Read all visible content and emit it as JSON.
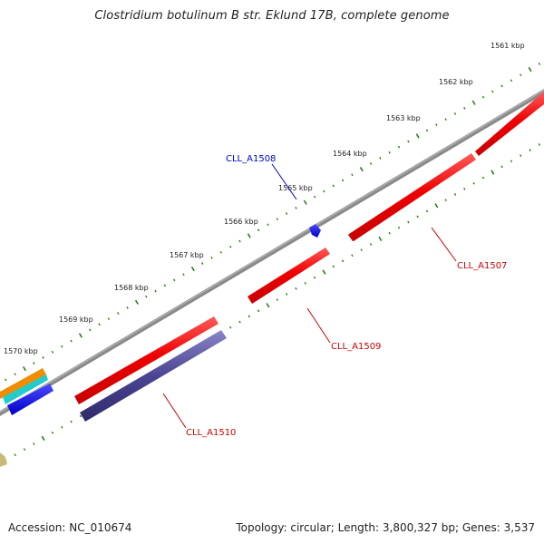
{
  "title": "Clostridium botulinum B str. Eklund 17B, complete genome",
  "footer": {
    "accession": "Accession: NC_010674",
    "summary": "Topology: circular; Length: 3,800,327 bp; Genes: 3,537"
  },
  "colors": {
    "backbone": "#7f7f7f",
    "tick_green": "#2e7d1a",
    "gene_red": "#ee0000",
    "gene_blue": "#0000ee",
    "gene_navy": "#4b4593",
    "gene_orange": "#f08c00",
    "gene_cyan": "#22cccc",
    "gene_khaki": "#c8bb7a",
    "label_red": "#cc0000",
    "label_blue": "#0000cc"
  },
  "scale_labels": [
    "1561 kbp",
    "1562 kbp",
    "1563 kbp",
    "1564 kbp",
    "1565 kbp",
    "1566 kbp",
    "1567 kbp",
    "1568 kbp",
    "1569 kbp",
    "1570 kbp"
  ],
  "genes": [
    {
      "label": "CLL_A1507",
      "strand": "reverse",
      "color": "red"
    },
    {
      "label": "CLL_A1508",
      "strand": "forward",
      "color": "blue"
    },
    {
      "label": "CLL_A1509",
      "strand": "reverse",
      "color": "red"
    },
    {
      "label": "CLL_A1510",
      "strand": "reverse",
      "color": "navy"
    }
  ]
}
